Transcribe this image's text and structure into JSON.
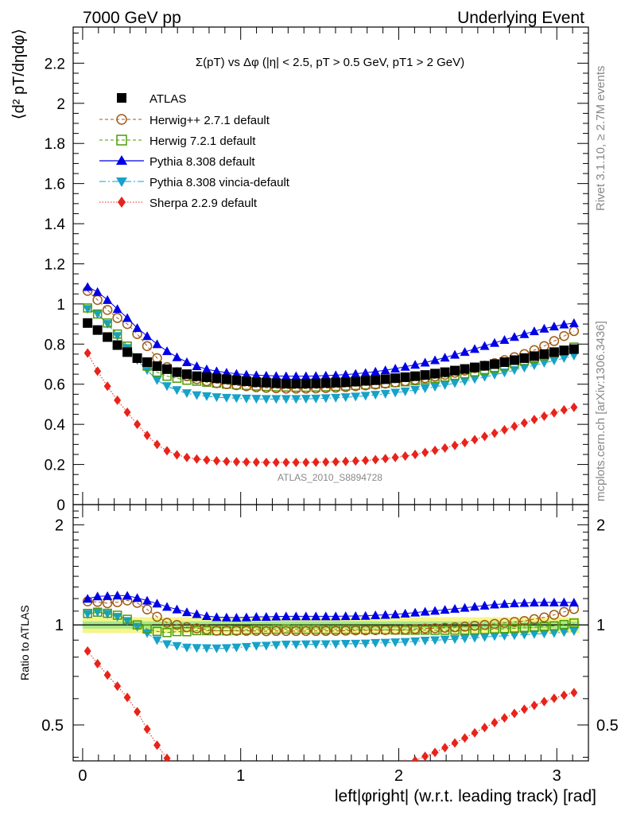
{
  "header": {
    "left": "7000 GeV pp",
    "right": "Underlying Event"
  },
  "side_text": {
    "rivet": "Rivet 3.1.10, ≥ 2.7M events",
    "mcplots": "mcplots.cern.ch [arXiv:1306.3436]"
  },
  "main_plot": {
    "title": "Σ(pT) vs Δφ (|η| < 2.5, pT > 0.5 GeV, pT1 > 2 GeV)",
    "ylabel": "⟨d² pT/dηdφ⟩",
    "ylim": [
      0,
      2.38
    ],
    "yticks": [
      "0",
      "0.2",
      "0.4",
      "0.6",
      "0.8",
      "1",
      "1.2",
      "1.4",
      "1.6",
      "1.8",
      "2",
      "2.2"
    ],
    "analysis_label": "ATLAS_2010_S8894728"
  },
  "ratio_plot": {
    "ylabel": "Ratio to ATLAS",
    "ylim": [
      0.39,
      2.3
    ],
    "yticks": [
      "0.5",
      "1",
      "2"
    ]
  },
  "xaxis": {
    "label": "left|φright| (w.r.t. leading track) [rad]",
    "xlim": [
      -0.06,
      3.2
    ],
    "ticks": [
      "0",
      "1",
      "2",
      "3"
    ]
  },
  "legend": {
    "atlas": "ATLAS",
    "herwigpp": "Herwig++ 2.7.1 default",
    "herwig7": "Herwig 7.2.1 default",
    "pythia": "Pythia 8.308 default",
    "vincia": "Pythia 8.308 vincia-default",
    "sherpa": "Sherpa 2.2.9 default"
  },
  "chart_data": {
    "type": "scatter",
    "x_centers": {
      "start": 0.0314,
      "step": 0.0628,
      "count": 50
    },
    "series": [
      {
        "name": "ATLAS",
        "color": "#000000",
        "marker": "square",
        "values": [
          0.905,
          0.87,
          0.835,
          0.795,
          0.76,
          0.73,
          0.71,
          0.69,
          0.675,
          0.66,
          0.65,
          0.64,
          0.635,
          0.63,
          0.625,
          0.62,
          0.615,
          0.61,
          0.608,
          0.605,
          0.603,
          0.603,
          0.603,
          0.604,
          0.606,
          0.608,
          0.61,
          0.613,
          0.617,
          0.62,
          0.625,
          0.63,
          0.635,
          0.64,
          0.646,
          0.653,
          0.66,
          0.668,
          0.676,
          0.684,
          0.692,
          0.7,
          0.71,
          0.72,
          0.73,
          0.74,
          0.75,
          0.76,
          0.768,
          0.775
        ]
      },
      {
        "name": "Herwig++ 2.7.1 default",
        "color": "#a05a14",
        "marker": "circle-open",
        "values": [
          1.065,
          1.02,
          0.97,
          0.93,
          0.9,
          0.85,
          0.79,
          0.73,
          0.685,
          0.66,
          0.64,
          0.625,
          0.615,
          0.605,
          0.6,
          0.595,
          0.59,
          0.585,
          0.582,
          0.58,
          0.578,
          0.578,
          0.578,
          0.579,
          0.581,
          0.583,
          0.586,
          0.59,
          0.594,
          0.598,
          0.603,
          0.609,
          0.615,
          0.622,
          0.63,
          0.638,
          0.647,
          0.657,
          0.668,
          0.68,
          0.692,
          0.705,
          0.72,
          0.735,
          0.75,
          0.77,
          0.79,
          0.815,
          0.84,
          0.865
        ]
      },
      {
        "name": "Herwig 7.2.1 default",
        "color": "#4e9a06",
        "marker": "square-open",
        "values": [
          0.98,
          0.95,
          0.905,
          0.85,
          0.79,
          0.73,
          0.69,
          0.66,
          0.64,
          0.63,
          0.62,
          0.615,
          0.61,
          0.605,
          0.6,
          0.597,
          0.594,
          0.591,
          0.589,
          0.587,
          0.586,
          0.585,
          0.585,
          0.586,
          0.587,
          0.589,
          0.591,
          0.594,
          0.597,
          0.6,
          0.604,
          0.608,
          0.612,
          0.617,
          0.623,
          0.629,
          0.636,
          0.644,
          0.652,
          0.661,
          0.67,
          0.68,
          0.691,
          0.703,
          0.715,
          0.728,
          0.741,
          0.755,
          0.77,
          0.785
        ]
      },
      {
        "name": "Pythia 8.308 default",
        "color": "#0000e6",
        "marker": "triangle-up",
        "values": [
          1.085,
          1.06,
          1.02,
          0.975,
          0.93,
          0.88,
          0.84,
          0.8,
          0.765,
          0.735,
          0.71,
          0.69,
          0.675,
          0.665,
          0.658,
          0.652,
          0.648,
          0.645,
          0.643,
          0.641,
          0.64,
          0.64,
          0.64,
          0.641,
          0.643,
          0.645,
          0.648,
          0.652,
          0.657,
          0.663,
          0.67,
          0.678,
          0.687,
          0.697,
          0.708,
          0.72,
          0.733,
          0.747,
          0.761,
          0.776,
          0.791,
          0.806,
          0.821,
          0.836,
          0.85,
          0.864,
          0.877,
          0.888,
          0.898,
          0.905
        ]
      },
      {
        "name": "Pythia 8.308 vincia-default",
        "color": "#17a2c8",
        "marker": "triangle-down",
        "values": [
          0.975,
          0.95,
          0.9,
          0.84,
          0.78,
          0.72,
          0.67,
          0.62,
          0.59,
          0.57,
          0.555,
          0.545,
          0.54,
          0.535,
          0.532,
          0.53,
          0.528,
          0.527,
          0.526,
          0.526,
          0.526,
          0.526,
          0.527,
          0.528,
          0.53,
          0.532,
          0.535,
          0.538,
          0.542,
          0.547,
          0.552,
          0.558,
          0.564,
          0.571,
          0.579,
          0.587,
          0.596,
          0.605,
          0.615,
          0.625,
          0.636,
          0.647,
          0.658,
          0.67,
          0.682,
          0.694,
          0.706,
          0.718,
          0.73,
          0.742
        ]
      },
      {
        "name": "Sherpa 2.2.9 default",
        "color": "#e8231a",
        "marker": "diamond",
        "values": [
          0.755,
          0.665,
          0.59,
          0.52,
          0.46,
          0.4,
          0.345,
          0.3,
          0.268,
          0.248,
          0.235,
          0.227,
          0.222,
          0.218,
          0.215,
          0.213,
          0.212,
          0.211,
          0.21,
          0.21,
          0.21,
          0.21,
          0.21,
          0.211,
          0.212,
          0.213,
          0.215,
          0.217,
          0.22,
          0.224,
          0.229,
          0.235,
          0.242,
          0.25,
          0.26,
          0.27,
          0.282,
          0.295,
          0.309,
          0.324,
          0.34,
          0.356,
          0.373,
          0.39,
          0.407,
          0.424,
          0.441,
          0.457,
          0.472,
          0.485
        ]
      }
    ]
  }
}
